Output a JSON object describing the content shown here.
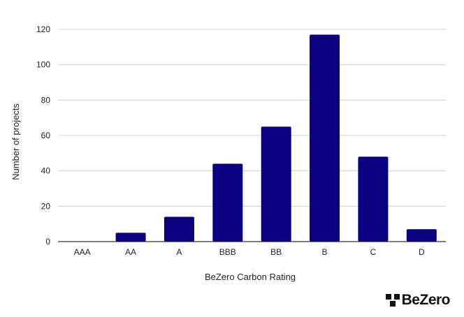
{
  "chart_data": {
    "type": "bar",
    "categories": [
      "AAA",
      "AA",
      "A",
      "BBB",
      "BB",
      "B",
      "C",
      "D"
    ],
    "values": [
      0,
      5,
      14,
      44,
      65,
      117,
      48,
      7
    ],
    "title": "",
    "xlabel": "BeZero Carbon Rating",
    "ylabel": "Number of projects",
    "ylim": [
      0,
      120
    ],
    "yticks": [
      0,
      20,
      40,
      60,
      80,
      100,
      120
    ],
    "grid": true,
    "bar_color": "#0a0080",
    "grid_color": "#d0d0d0"
  },
  "brand": {
    "logo_text": "BeZero",
    "logo_icon": "bezero-logo-icon"
  }
}
